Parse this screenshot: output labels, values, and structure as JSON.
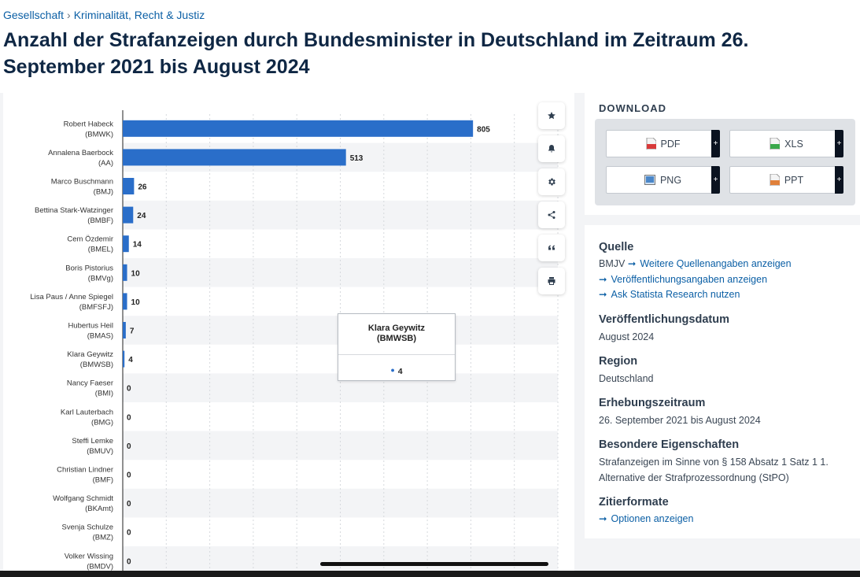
{
  "breadcrumb": {
    "items": [
      "Gesellschaft",
      "Kriminalität, Recht & Justiz"
    ],
    "separator": "›"
  },
  "title": "Anzahl der Strafanzeigen durch Bundesminister in Deutschland im Zeitraum 26. September 2021 bis August 2024",
  "colors": {
    "bar": "#2a6ec9",
    "link": "#0b5fa5",
    "heading": "#0f2744"
  },
  "chart_data": {
    "type": "bar",
    "orientation": "horizontal",
    "categories": [
      [
        "Robert Habeck",
        "(BMWK)"
      ],
      [
        "Annalena Baerbock",
        "(AA)"
      ],
      [
        "Marco Buschmann",
        "(BMJ)"
      ],
      [
        "Bettina Stark-Watzinger",
        "(BMBF)"
      ],
      [
        "Cem Özdemir",
        "(BMEL)"
      ],
      [
        "Boris Pistorius",
        "(BMVg)"
      ],
      [
        "Lisa Paus / Anne Spiegel",
        "(BMFSFJ)"
      ],
      [
        "Hubertus Heil",
        "(BMAS)"
      ],
      [
        "Klara Geywitz",
        "(BMWSB)"
      ],
      [
        "Nancy Faeser",
        "(BMI)"
      ],
      [
        "Karl Lauterbach",
        "(BMG)"
      ],
      [
        "Steffi Lemke",
        "(BMUV)"
      ],
      [
        "Christian Lindner",
        "(BMF)"
      ],
      [
        "Wolfgang Schmidt",
        "(BKAmt)"
      ],
      [
        "Svenja Schulze",
        "(BMZ)"
      ],
      [
        "Volker Wissing",
        "(BMDV)"
      ]
    ],
    "values": [
      805,
      513,
      26,
      24,
      14,
      10,
      10,
      7,
      4,
      0,
      0,
      0,
      0,
      0,
      0,
      0
    ],
    "xlim": [
      0,
      1000
    ],
    "grid": true,
    "data_labels": true
  },
  "tooltip": {
    "title_line1": "Klara Geywitz",
    "title_line2": "(BMWSB)",
    "value": "4"
  },
  "tools": [
    {
      "name": "favorite",
      "icon": "star-icon"
    },
    {
      "name": "notification",
      "icon": "bell-icon"
    },
    {
      "name": "settings",
      "icon": "gear-icon"
    },
    {
      "name": "share",
      "icon": "share-icon"
    },
    {
      "name": "cite",
      "icon": "quote-icon"
    },
    {
      "name": "print",
      "icon": "printer-icon"
    }
  ],
  "download": {
    "heading": "DOWNLOAD",
    "buttons": [
      {
        "label": "PDF",
        "icon": "pdf-file-icon",
        "color": "#d83a3a"
      },
      {
        "label": "XLS",
        "icon": "xls-file-icon",
        "color": "#3aa84a"
      },
      {
        "label": "PNG",
        "icon": "png-file-icon",
        "color": "#4a86c8"
      },
      {
        "label": "PPT",
        "icon": "ppt-file-icon",
        "color": "#e0803a"
      }
    ],
    "plus": "+"
  },
  "meta": {
    "source_heading": "Quelle",
    "source_name": "BMJV",
    "source_link": "Weitere Quellenangaben anzeigen",
    "publication_link": "Veröffentlichungsangaben anzeigen",
    "research_link": "Ask Statista Research nutzen",
    "pubdate_heading": "Veröffentlichungsdatum",
    "pubdate": "August 2024",
    "region_heading": "Region",
    "region": "Deutschland",
    "period_heading": "Erhebungszeitraum",
    "period": "26. September 2021 bis August 2024",
    "special_heading": "Besondere Eigenschaften",
    "special": "Strafanzeigen im Sinne von § 158 Absatz 1 Satz 1 1. Alternative der Strafprozessordnung (StPO)",
    "cite_heading": "Zitierformate",
    "cite_link": "Optionen anzeigen"
  }
}
